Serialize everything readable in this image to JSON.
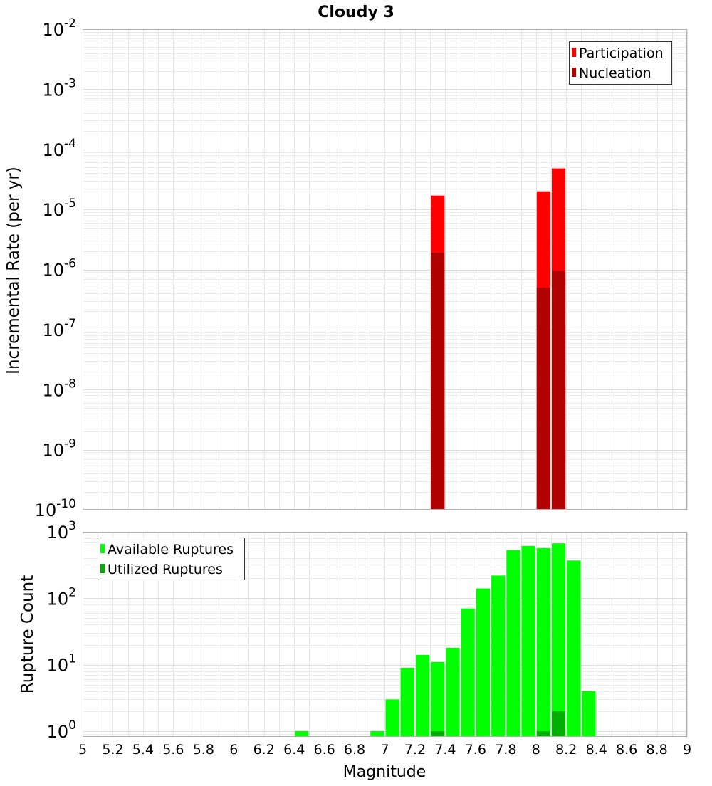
{
  "chart_data": {
    "type": "bar",
    "title": "Cloudy 3",
    "xlabel": "Magnitude",
    "xlim": [
      5,
      9
    ],
    "x_ticks": [
      "5",
      "5.2",
      "5.4",
      "5.6",
      "5.8",
      "6",
      "6.2",
      "6.4",
      "6.6",
      "6.8",
      "7",
      "7.2",
      "7.4",
      "7.6",
      "7.8",
      "8",
      "8.2",
      "8.4",
      "8.6",
      "8.8",
      "9"
    ],
    "bin_width": 0.1,
    "panels": [
      {
        "ylabel": "Incremental Rate (per yr)",
        "yscale": "log",
        "ylim": [
          1e-10,
          0.01
        ],
        "y_ticks": [
          {
            "base": "10",
            "exp": "-2"
          },
          {
            "base": "10",
            "exp": "-3"
          },
          {
            "base": "10",
            "exp": "-4"
          },
          {
            "base": "10",
            "exp": "-5"
          },
          {
            "base": "10",
            "exp": "-6"
          },
          {
            "base": "10",
            "exp": "-7"
          },
          {
            "base": "10",
            "exp": "-8"
          },
          {
            "base": "10",
            "exp": "-9"
          },
          {
            "base": "10",
            "exp": "-10"
          }
        ],
        "legend_position": "top-right",
        "series": [
          {
            "name": "Participation",
            "color": "#ff0000",
            "points": [
              {
                "x": 7.35,
                "y": 1.7e-05
              },
              {
                "x": 8.05,
                "y": 2e-05
              },
              {
                "x": 8.15,
                "y": 4.8e-05
              }
            ]
          },
          {
            "name": "Nucleation",
            "color": "#b00000",
            "points": [
              {
                "x": 7.35,
                "y": 1.9e-06
              },
              {
                "x": 8.05,
                "y": 5e-07
              },
              {
                "x": 8.15,
                "y": 9.5e-07
              }
            ]
          }
        ]
      },
      {
        "ylabel": "Rupture Count",
        "yscale": "log",
        "ylim": [
          0.82,
          1000
        ],
        "y_ticks": [
          {
            "base": "10",
            "exp": "3"
          },
          {
            "base": "10",
            "exp": "2"
          },
          {
            "base": "10",
            "exp": "1"
          },
          {
            "base": "10",
            "exp": "0"
          }
        ],
        "legend_position": "top-left",
        "series": [
          {
            "name": "Available Ruptures",
            "color": "#00ff00",
            "points": [
              {
                "x": 6.45,
                "y": 1
              },
              {
                "x": 6.95,
                "y": 1
              },
              {
                "x": 7.05,
                "y": 3
              },
              {
                "x": 7.15,
                "y": 9
              },
              {
                "x": 7.25,
                "y": 14
              },
              {
                "x": 7.35,
                "y": 11
              },
              {
                "x": 7.45,
                "y": 18
              },
              {
                "x": 7.55,
                "y": 70
              },
              {
                "x": 7.65,
                "y": 140
              },
              {
                "x": 7.75,
                "y": 220
              },
              {
                "x": 7.85,
                "y": 530
              },
              {
                "x": 7.95,
                "y": 610
              },
              {
                "x": 8.05,
                "y": 570
              },
              {
                "x": 8.15,
                "y": 670
              },
              {
                "x": 8.25,
                "y": 370
              },
              {
                "x": 8.35,
                "y": 4
              }
            ]
          },
          {
            "name": "Utilized Ruptures",
            "color": "#00b000",
            "points": [
              {
                "x": 7.35,
                "y": 1
              },
              {
                "x": 8.05,
                "y": 1
              },
              {
                "x": 8.15,
                "y": 2
              }
            ]
          }
        ]
      }
    ]
  }
}
